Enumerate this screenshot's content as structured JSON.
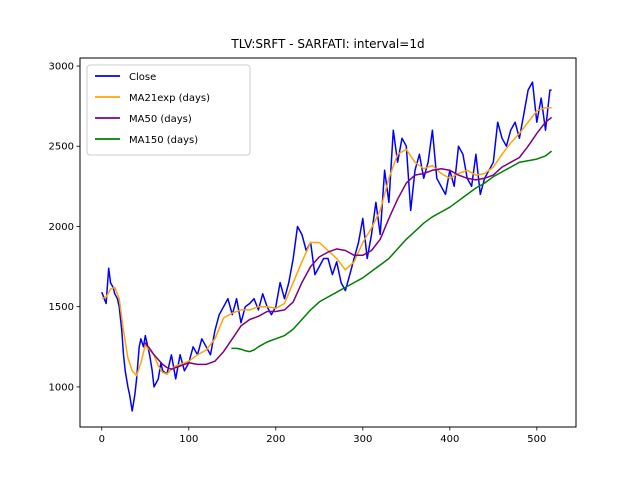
{
  "chart_data": {
    "type": "line",
    "title": "TLV:SRFT - SARFATI: interval=1d",
    "xlabel": "",
    "ylabel": "",
    "xlim": [
      -25,
      545
    ],
    "ylim": [
      750,
      3050
    ],
    "xticks": [
      0,
      100,
      200,
      300,
      400,
      500
    ],
    "yticks": [
      1000,
      1500,
      2000,
      2500,
      3000
    ],
    "grid": false,
    "legend_position": "upper-left",
    "series": [
      {
        "name": "Close",
        "color": "#0000ff",
        "x": [
          0,
          5,
          8,
          10,
          13,
          15,
          18,
          20,
          23,
          25,
          27,
          30,
          32,
          35,
          38,
          40,
          43,
          45,
          48,
          50,
          55,
          58,
          60,
          65,
          68,
          70,
          75,
          80,
          85,
          90,
          95,
          100,
          105,
          110,
          115,
          120,
          125,
          130,
          135,
          140,
          145,
          150,
          155,
          160,
          165,
          170,
          175,
          180,
          185,
          190,
          195,
          200,
          205,
          210,
          215,
          220,
          225,
          230,
          235,
          240,
          245,
          250,
          255,
          260,
          265,
          270,
          275,
          280,
          285,
          290,
          295,
          300,
          305,
          310,
          315,
          320,
          325,
          330,
          335,
          340,
          345,
          350,
          355,
          360,
          365,
          370,
          375,
          380,
          385,
          390,
          395,
          400,
          405,
          410,
          415,
          420,
          425,
          430,
          435,
          440,
          445,
          450,
          455,
          460,
          465,
          470,
          475,
          480,
          485,
          490,
          495,
          500,
          505,
          510,
          515,
          517
        ],
        "y": [
          1590,
          1520,
          1740,
          1650,
          1620,
          1580,
          1550,
          1500,
          1350,
          1200,
          1100,
          1000,
          950,
          850,
          950,
          1050,
          1250,
          1300,
          1250,
          1320,
          1200,
          1100,
          1000,
          1050,
          1150,
          1100,
          1080,
          1200,
          1050,
          1200,
          1100,
          1150,
          1250,
          1200,
          1300,
          1250,
          1200,
          1350,
          1450,
          1500,
          1550,
          1450,
          1550,
          1400,
          1500,
          1520,
          1550,
          1480,
          1580,
          1500,
          1450,
          1500,
          1650,
          1550,
          1650,
          1800,
          2000,
          1950,
          1850,
          1900,
          1700,
          1750,
          1800,
          1800,
          1700,
          1780,
          1650,
          1600,
          1700,
          1800,
          1900,
          2050,
          1800,
          1950,
          2150,
          1950,
          2350,
          2150,
          2600,
          2400,
          2550,
          2500,
          2100,
          2350,
          2450,
          2300,
          2400,
          2600,
          2300,
          2250,
          2200,
          2350,
          2250,
          2500,
          2450,
          2300,
          2250,
          2450,
          2200,
          2300,
          2350,
          2400,
          2650,
          2550,
          2500,
          2600,
          2650,
          2550,
          2700,
          2850,
          2900,
          2650,
          2800,
          2600,
          2850,
          2850
        ]
      },
      {
        "name": "MA21exp (days)",
        "color": "#ffa500",
        "x": [
          0,
          5,
          10,
          15,
          20,
          25,
          30,
          35,
          40,
          45,
          50,
          55,
          60,
          65,
          70,
          75,
          80,
          85,
          90,
          95,
          100,
          110,
          120,
          130,
          140,
          150,
          160,
          170,
          180,
          190,
          200,
          210,
          220,
          230,
          240,
          250,
          260,
          270,
          280,
          290,
          300,
          310,
          320,
          330,
          340,
          350,
          360,
          370,
          380,
          390,
          400,
          410,
          420,
          430,
          440,
          450,
          460,
          470,
          480,
          490,
          500,
          510,
          517
        ],
        "y": [
          1550,
          1560,
          1610,
          1620,
          1550,
          1350,
          1180,
          1100,
          1070,
          1150,
          1260,
          1230,
          1200,
          1130,
          1090,
          1080,
          1110,
          1130,
          1140,
          1150,
          1160,
          1200,
          1230,
          1300,
          1430,
          1460,
          1480,
          1480,
          1500,
          1500,
          1490,
          1520,
          1650,
          1780,
          1900,
          1900,
          1850,
          1800,
          1730,
          1780,
          1900,
          1990,
          2100,
          2300,
          2450,
          2480,
          2400,
          2360,
          2380,
          2330,
          2300,
          2330,
          2350,
          2320,
          2330,
          2370,
          2450,
          2520,
          2580,
          2650,
          2720,
          2740,
          2740
        ]
      },
      {
        "name": "MA50 (days)",
        "color": "#800080",
        "x": [
          49,
          55,
          60,
          65,
          70,
          75,
          80,
          85,
          90,
          100,
          110,
          120,
          130,
          140,
          150,
          160,
          170,
          180,
          190,
          200,
          210,
          220,
          230,
          240,
          250,
          260,
          270,
          280,
          290,
          300,
          310,
          320,
          330,
          340,
          350,
          360,
          370,
          380,
          390,
          400,
          410,
          420,
          430,
          440,
          450,
          460,
          470,
          480,
          490,
          500,
          510,
          517
        ],
        "y": [
          1280,
          1240,
          1200,
          1170,
          1140,
          1120,
          1110,
          1120,
          1130,
          1150,
          1140,
          1140,
          1160,
          1220,
          1300,
          1380,
          1420,
          1440,
          1470,
          1470,
          1480,
          1530,
          1650,
          1750,
          1810,
          1840,
          1860,
          1850,
          1820,
          1820,
          1850,
          1920,
          2050,
          2170,
          2270,
          2320,
          2330,
          2350,
          2360,
          2350,
          2320,
          2300,
          2290,
          2300,
          2320,
          2370,
          2400,
          2430,
          2500,
          2580,
          2650,
          2680
        ]
      },
      {
        "name": "MA150 (days)",
        "color": "#008000",
        "x": [
          149,
          155,
          160,
          165,
          170,
          175,
          180,
          190,
          200,
          210,
          220,
          230,
          240,
          250,
          260,
          270,
          280,
          290,
          300,
          310,
          320,
          330,
          340,
          350,
          360,
          370,
          380,
          390,
          400,
          410,
          420,
          430,
          440,
          450,
          460,
          470,
          480,
          490,
          500,
          510,
          517
        ],
        "y": [
          1240,
          1240,
          1235,
          1225,
          1220,
          1230,
          1250,
          1280,
          1300,
          1320,
          1360,
          1420,
          1480,
          1530,
          1560,
          1590,
          1620,
          1650,
          1680,
          1720,
          1760,
          1800,
          1860,
          1920,
          1970,
          2020,
          2060,
          2090,
          2120,
          2160,
          2200,
          2240,
          2270,
          2310,
          2340,
          2370,
          2400,
          2410,
          2420,
          2440,
          2470
        ]
      }
    ]
  }
}
